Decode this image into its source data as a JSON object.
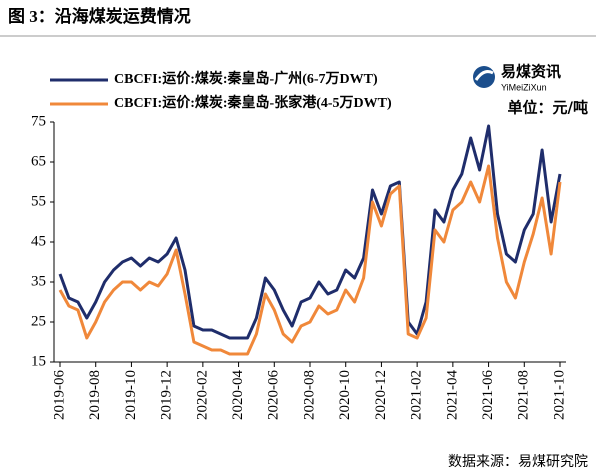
{
  "chart_data": {
    "type": "line",
    "title": "图 3：沿海煤炭运费情况",
    "unit_label": "单位：元/吨",
    "source": "数据来源：易煤研究院",
    "logo": {
      "name": "易煤资讯",
      "subtitle": "YiMeiZiXun"
    },
    "categories": [
      "2019-06",
      null,
      null,
      null,
      "2019-08",
      null,
      null,
      null,
      "2019-10",
      null,
      null,
      null,
      "2019-12",
      null,
      null,
      null,
      "2020-02",
      null,
      null,
      null,
      "2020-04",
      null,
      null,
      null,
      "2020-06",
      null,
      null,
      null,
      "2020-08",
      null,
      null,
      null,
      "2020-10",
      null,
      null,
      null,
      "2020-12",
      null,
      null,
      null,
      "2021-02",
      null,
      null,
      null,
      "2021-04",
      null,
      null,
      null,
      "2021-06",
      null,
      null,
      null,
      "2021-08",
      null,
      null,
      null,
      "2021-10"
    ],
    "series": [
      {
        "name": "CBCFI:运价:煤炭:秦皇岛-广州(6-7万DWT)",
        "color": "#1f2d6b",
        "values": [
          37,
          31,
          30,
          26,
          30,
          35,
          38,
          40,
          41,
          39,
          41,
          40,
          42,
          46,
          38,
          24,
          23,
          23,
          22,
          21,
          21,
          21,
          26,
          36,
          33,
          28,
          24,
          30,
          31,
          35,
          32,
          33,
          38,
          36,
          41,
          58,
          52,
          59,
          60,
          25,
          22,
          30,
          53,
          50,
          58,
          62,
          71,
          63,
          74,
          52,
          42,
          40,
          48,
          52,
          68,
          50,
          62
        ]
      },
      {
        "name": "CBCFI:运价:煤炭:秦皇岛-张家港(4-5万DWT)",
        "color": "#f0883a",
        "values": [
          33,
          29,
          28,
          21,
          25,
          30,
          33,
          35,
          35,
          33,
          35,
          34,
          37,
          43,
          32,
          20,
          19,
          18,
          18,
          17,
          17,
          17,
          22,
          32,
          28,
          22,
          20,
          24,
          25,
          29,
          27,
          28,
          33,
          30,
          36,
          55,
          49,
          57,
          59,
          22,
          21,
          26,
          48,
          45,
          53,
          55,
          60,
          55,
          64,
          46,
          35,
          31,
          40,
          47,
          56,
          42,
          60
        ]
      }
    ],
    "ylim": [
      15,
      75
    ],
    "yticks": [
      15,
      25,
      35,
      45,
      55,
      65,
      75
    ]
  }
}
